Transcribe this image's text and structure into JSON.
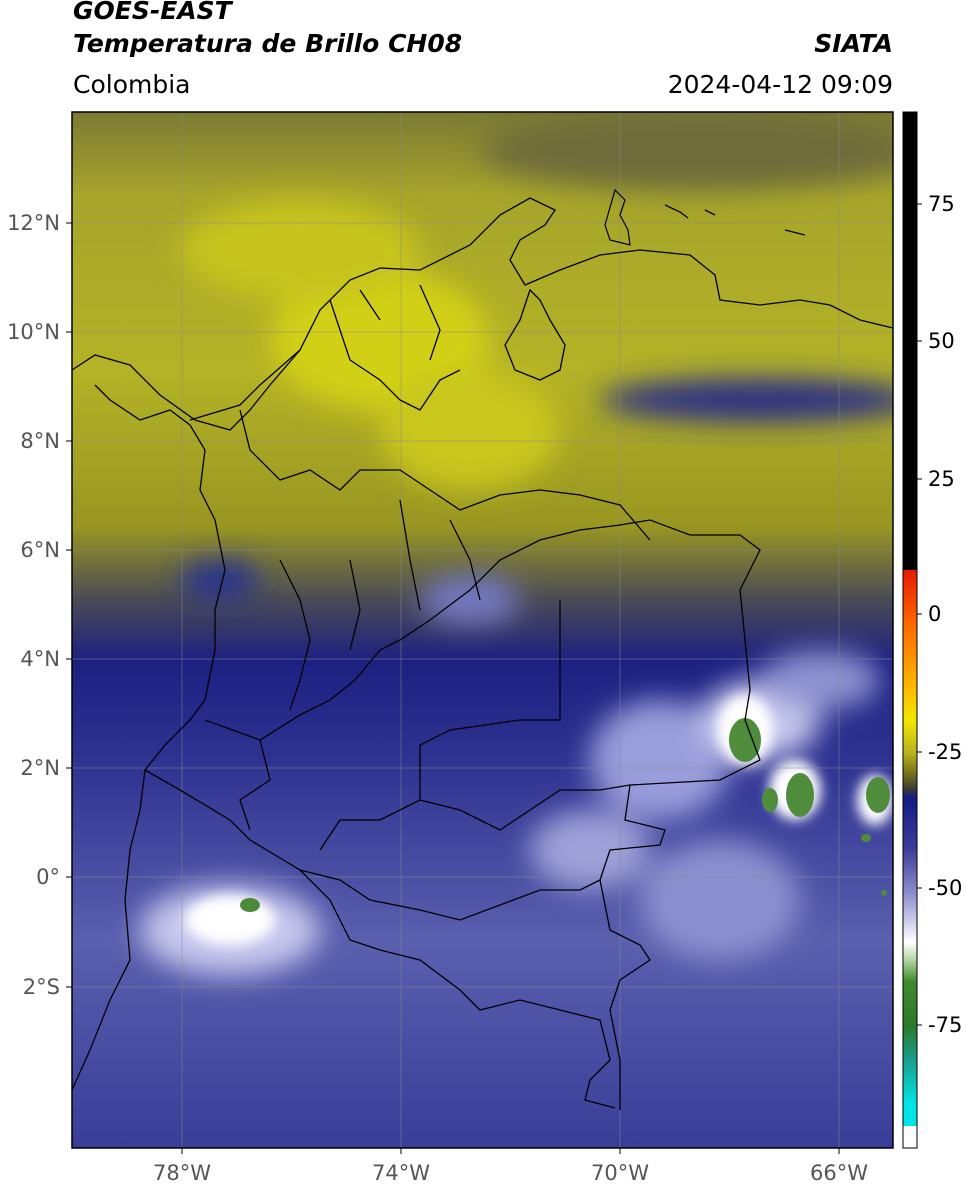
{
  "header": {
    "satellite": "GOES-EAST",
    "product": "Temperatura de Brillo CH08",
    "institution": "SIATA",
    "region": "Colombia",
    "datetime": "2024-04-12 09:09"
  },
  "map": {
    "lon_range": [
      -80,
      -65
    ],
    "lat_range": [
      -5,
      14
    ],
    "lat_ticks": [
      "12°N",
      "10°N",
      "8°N",
      "6°N",
      "4°N",
      "2°N",
      "0°",
      "2°S"
    ],
    "lon_ticks": [
      "78°W",
      "74°W",
      "70°W",
      "66°W"
    ]
  },
  "colorbar": {
    "ticks": [
      "75",
      "50",
      "25",
      "0",
      "-25",
      "-50",
      "-75"
    ],
    "colors": {
      "warm_top": "#000000",
      "red": "#ff2a00",
      "orange": "#ff9900",
      "yellow": "#f3e700",
      "olive": "#6f6a1c",
      "dark_gray": "#3a3a3a",
      "navy": "#141b85",
      "lavender": "#a6a8dc",
      "white": "#ffffff",
      "green": "#2f7d22",
      "teal": "#1a9e8a",
      "cyan": "#00e5e5"
    }
  }
}
